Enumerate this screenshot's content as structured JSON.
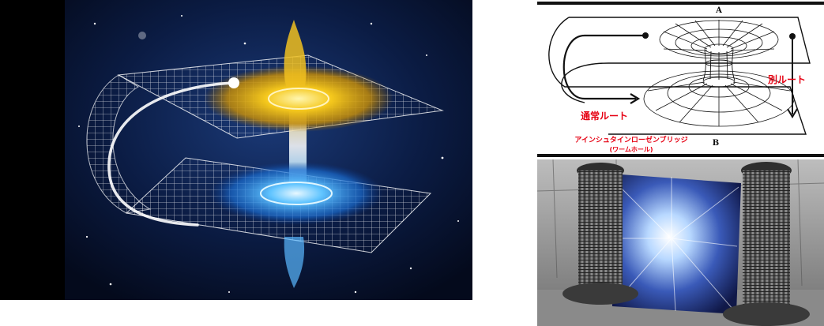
{
  "left_image": {
    "alt": "wormhole space-time sheets artwork",
    "colors": {
      "space": "#0a1a3a",
      "upper_glow": "#f2c21a",
      "lower_glow": "#3aa8ff",
      "grid": "#ffffff"
    }
  },
  "diagram": {
    "label_a": "A",
    "label_b": "B",
    "normal_route": "通常ルート",
    "alt_route": "別ルート",
    "bridge_title": "アインシュタインローゼンブリッジ",
    "bridge_subtitle": "(ワームホール)",
    "colors": {
      "label_red": "#e60012",
      "ink": "#111111"
    }
  },
  "photo": {
    "alt": "two tesla coil towers with a wormhole portal between them"
  }
}
